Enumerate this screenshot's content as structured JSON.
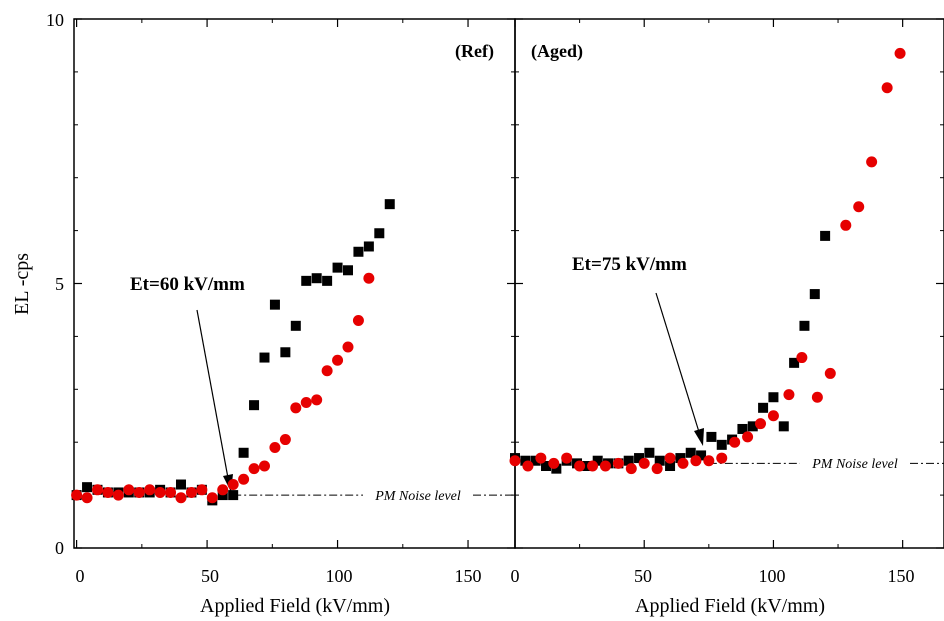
{
  "chart_data": {
    "type": "scatter",
    "y_axis": {
      "label": "EL -cps",
      "range": [
        0,
        10
      ],
      "ticks": [
        "0",
        "5",
        "10"
      ]
    },
    "marker_colors": {
      "black_series": "#000000",
      "red_series": "#e60000"
    },
    "panels": [
      {
        "tag": "(Ref)",
        "xlabel": "Applied Field (kV/mm)",
        "xlim": [
          -1,
          168
        ],
        "x_ticks": [
          "0",
          "50",
          "100",
          "150"
        ],
        "threshold_label": "Et=60 kV/mm",
        "threshold_field": 60,
        "noise_label": "PM Noise level",
        "noise_value": 1.0,
        "series": [
          {
            "marker": "square",
            "color": "#000000",
            "x": [
              0,
              4,
              8,
              12,
              16,
              20,
              24,
              28,
              32,
              36,
              40,
              44,
              48,
              52,
              56,
              60,
              64,
              68,
              72,
              76,
              80,
              84,
              88,
              92,
              96,
              100,
              104,
              108,
              112,
              116,
              120
            ],
            "y": [
              1.0,
              1.15,
              1.1,
              1.05,
              1.05,
              1.05,
              1.05,
              1.05,
              1.1,
              1.05,
              1.2,
              1.05,
              1.1,
              0.9,
              1.0,
              1.0,
              1.8,
              2.7,
              3.6,
              4.6,
              3.7,
              4.2,
              5.05,
              5.1,
              5.05,
              5.3,
              5.25,
              5.6,
              5.7,
              5.95,
              6.5
            ]
          },
          {
            "marker": "circle",
            "color": "#e60000",
            "x": [
              0,
              4,
              8,
              12,
              16,
              20,
              24,
              28,
              32,
              36,
              40,
              44,
              48,
              52,
              56,
              60,
              64,
              68,
              72,
              76,
              80,
              84,
              88,
              92,
              96,
              100,
              104,
              108,
              112
            ],
            "y": [
              1.0,
              0.95,
              1.1,
              1.05,
              1.0,
              1.1,
              1.05,
              1.1,
              1.05,
              1.05,
              0.95,
              1.05,
              1.1,
              0.95,
              1.1,
              1.2,
              1.3,
              1.5,
              1.55,
              1.9,
              2.05,
              2.65,
              2.75,
              2.8,
              3.35,
              3.55,
              3.8,
              4.3,
              5.1
            ]
          }
        ]
      },
      {
        "tag": "(Aged)",
        "xlabel": "Applied Field (kV/mm)",
        "xlim": [
          0,
          166
        ],
        "x_ticks": [
          "0",
          "50",
          "100",
          "150"
        ],
        "threshold_label": "Et=75 kV/mm",
        "threshold_field": 75,
        "noise_label": "PM Noise level",
        "noise_value": 1.6,
        "series": [
          {
            "marker": "square",
            "color": "#000000",
            "x": [
              0,
              4,
              8,
              12,
              16,
              20,
              24,
              28,
              32,
              36,
              40,
              44,
              48,
              52,
              56,
              60,
              64,
              68,
              72,
              76,
              80,
              84,
              88,
              92,
              96,
              100,
              104,
              108,
              112,
              116,
              120
            ],
            "y": [
              1.7,
              1.65,
              1.65,
              1.55,
              1.5,
              1.65,
              1.6,
              1.55,
              1.65,
              1.6,
              1.6,
              1.65,
              1.7,
              1.8,
              1.65,
              1.55,
              1.7,
              1.8,
              1.75,
              2.1,
              1.95,
              2.05,
              2.25,
              2.3,
              2.65,
              2.85,
              2.3,
              3.5,
              4.2,
              4.8,
              5.9
            ]
          },
          {
            "marker": "circle",
            "color": "#e60000",
            "x": [
              0,
              5,
              10,
              15,
              20,
              25,
              30,
              35,
              40,
              45,
              50,
              55,
              60,
              65,
              70,
              75,
              80,
              85,
              90,
              95,
              100,
              106,
              111,
              117,
              122,
              128,
              133,
              138,
              144,
              149
            ],
            "y": [
              1.65,
              1.55,
              1.7,
              1.6,
              1.7,
              1.55,
              1.55,
              1.55,
              1.6,
              1.5,
              1.6,
              1.5,
              1.7,
              1.6,
              1.65,
              1.65,
              1.7,
              2.0,
              2.1,
              2.35,
              2.5,
              2.9,
              3.6,
              2.85,
              3.3,
              6.1,
              6.45,
              7.3,
              8.7,
              9.35
            ]
          }
        ]
      }
    ]
  }
}
